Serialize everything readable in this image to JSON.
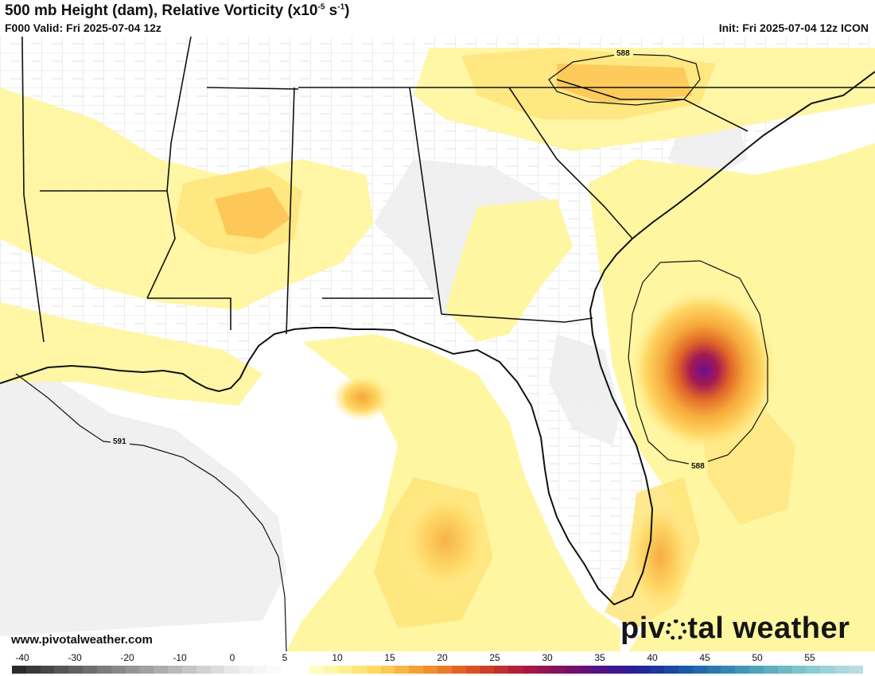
{
  "header": {
    "title": "500 mb Height (dam), Relative Vorticity (x10",
    "title_exp1": "-5",
    "title_mid": " s",
    "title_exp2": "-1",
    "title_end": ")",
    "valid_text": "F000 Valid: Fri 2025-07-04 12z",
    "init_text": "Init: Fri 2025-07-04 12z ICON"
  },
  "contours": {
    "label_588_north": "588",
    "label_588_east": "588",
    "label_591": "591"
  },
  "footer": {
    "website": "www.pivotalweather.com",
    "brand_left": "piv",
    "brand_right": "tal weather"
  },
  "colorbar": {
    "tick_labels": [
      "-40",
      "-30",
      "-20",
      "-10",
      "0",
      "5",
      "10",
      "15",
      "20",
      "25",
      "30",
      "35",
      "40",
      "45",
      "50",
      "55"
    ],
    "colors": [
      "#2b2b2b",
      "#3a3a3a",
      "#474747",
      "#555555",
      "#616161",
      "#6e6e6e",
      "#7b7b7b",
      "#888888",
      "#959595",
      "#a1a1a1",
      "#adadad",
      "#b9b9b9",
      "#c5c5c5",
      "#d1d1d1",
      "#dddddd",
      "#e8e8e8",
      "#f0f0f0",
      "#f6f6f6",
      "#fbfbfb",
      "#ffffff",
      "#ffffff",
      "#fffdc0",
      "#fff7a8",
      "#ffef8f",
      "#ffe47a",
      "#ffd866",
      "#fdc854",
      "#f9b645",
      "#f3a23a",
      "#ee8f32",
      "#e87b2c",
      "#e06627",
      "#d75326",
      "#cc4029",
      "#c0302f",
      "#b22238",
      "#a31a45",
      "#941552",
      "#84125f",
      "#74106b",
      "#631079",
      "#521285",
      "#3f1690",
      "#2e1c98",
      "#22279c",
      "#1d379f",
      "#1b48a2",
      "#1c59a6",
      "#2169aa",
      "#2a78ae",
      "#3587b2",
      "#4195b6",
      "#4fa2bb",
      "#5eaec0",
      "#6db9c6",
      "#7dc3cc",
      "#8ccbd2",
      "#9bd2d8",
      "#aad8dd",
      "#b8dde2"
    ]
  }
}
